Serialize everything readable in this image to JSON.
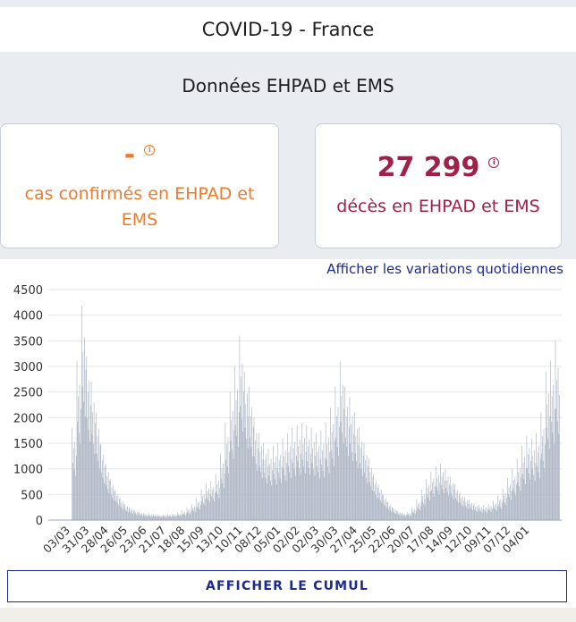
{
  "header": {
    "title": "COVID-19 - France"
  },
  "section": {
    "title": "Données EHPAD et EMS"
  },
  "cards": {
    "cases": {
      "value": "-",
      "label": "cas confirmés en EHPAD et EMS",
      "info_icon": "info-circle-icon",
      "color": "#f07a2b"
    },
    "deaths": {
      "value": "27 299",
      "label": "décès en EHPAD et EMS",
      "info_icon": "info-circle-icon",
      "color": "#a02048"
    }
  },
  "chart_controls": {
    "variations_link": "Afficher les variations quotidiennes",
    "cumul_button": "AFFICHER LE CUMUL"
  },
  "chart_data": {
    "type": "bar",
    "title": "",
    "xlabel": "",
    "ylabel": "",
    "ylim": [
      0,
      4500
    ],
    "yticks": [
      0,
      500,
      1000,
      1500,
      2000,
      2500,
      3000,
      3500,
      4000,
      4500
    ],
    "grid": true,
    "bar_color": "#aab3c2",
    "xtick_labels": [
      "03/03",
      "31/03",
      "28/04",
      "26/05",
      "23/06",
      "21/07",
      "18/08",
      "15/09",
      "13/10",
      "10/11",
      "08/12",
      "05/01",
      "02/02",
      "02/03",
      "30/03",
      "27/04",
      "25/05",
      "22/06",
      "20/07",
      "17/08",
      "14/09",
      "12/10",
      "09/11",
      "07/12",
      "04/01"
    ],
    "weekly_peak_values": [
      0,
      1800,
      3100,
      4200,
      3200,
      2700,
      2100,
      1500,
      1100,
      800,
      600,
      430,
      320,
      250,
      200,
      160,
      140,
      130,
      120,
      110,
      110,
      120,
      130,
      150,
      190,
      240,
      320,
      430,
      600,
      720,
      760,
      900,
      1300,
      1900,
      2500,
      3000,
      3600,
      2900,
      2600,
      2000,
      1700,
      1500,
      1400,
      1450,
      1500,
      1600,
      1700,
      1800,
      1850,
      1900,
      1850,
      1800,
      1700,
      1750,
      1900,
      2200,
      2600,
      3100,
      2600,
      2400,
      2100,
      1800,
      1500,
      1200,
      900,
      700,
      500,
      350,
      250,
      180,
      150,
      160,
      250,
      400,
      600,
      800,
      950,
      1050,
      1100,
      1000,
      850,
      700,
      550,
      450,
      400,
      330,
      300,
      300,
      320,
      380,
      480,
      620,
      820,
      1000,
      1200,
      1450,
      1650,
      1600,
      1700,
      2100,
      2900,
      3100,
      3500
    ]
  }
}
